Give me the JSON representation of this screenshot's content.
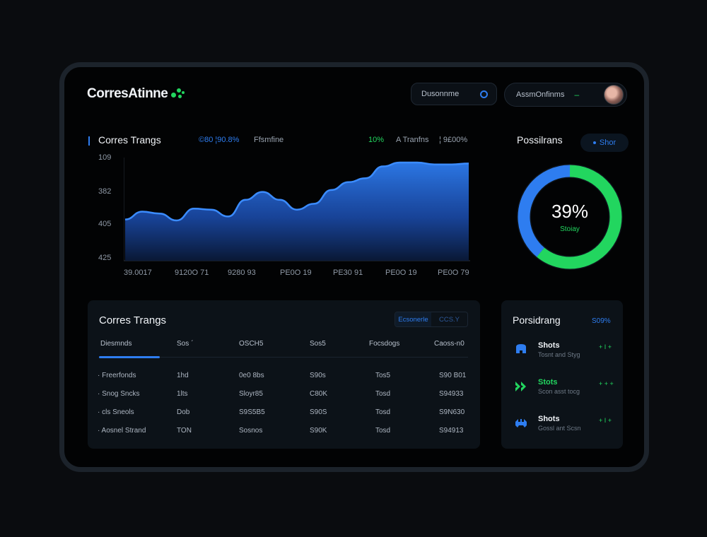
{
  "app": {
    "brand": "CorresAtinne",
    "search_label": "Dusonnme",
    "account_label": "AssmOnfinms",
    "account_marker": "–"
  },
  "chart_header": {
    "title": "Corres Trangs",
    "stat_a": "©80 ¦90.8%",
    "stat_b": "Ffsmfine",
    "stat_c": "10%",
    "stat_d": "A Tranfns",
    "stat_e": "¦ 9£00%"
  },
  "colors": {
    "accent_blue": "#2e7df0",
    "accent_green": "#22d65f",
    "background": "#020304",
    "panel": "#0c1218"
  },
  "chart_data": {
    "type": "area",
    "title": "Corres Trangs",
    "ytick_labels": [
      "109",
      "382",
      "405",
      "425"
    ],
    "xtick_labels": [
      "39.0017",
      "9120O 71",
      "9280 93",
      "PE0O 19",
      "PE30 91",
      "PE0O 19",
      "PE0O 79"
    ],
    "x": [
      0,
      1,
      2,
      3,
      4,
      5,
      6,
      7,
      8,
      9,
      10,
      11,
      12,
      13,
      14,
      15,
      16,
      17,
      18,
      19,
      20
    ],
    "values": [
      42,
      50,
      48,
      41,
      53,
      52,
      45,
      62,
      70,
      62,
      52,
      58,
      72,
      80,
      84,
      96,
      100,
      100,
      98,
      98,
      99
    ],
    "ylim": [
      0,
      105
    ],
    "grid": false,
    "fill_color": "#2e7df0"
  },
  "positions_donut": {
    "title": "Possilrans",
    "show_button": "Shor",
    "value": "39%",
    "sublabel": "Stoiay",
    "percent_green": 61,
    "percent_blue": 39
  },
  "table": {
    "title": "Corres Trangs",
    "segment_a": "Ecsonerle",
    "segment_b": "CCS.Y",
    "columns": [
      "Diesmnds",
      "Sos ˊ",
      "OSCH5",
      "Sos5",
      "Focsdogs",
      "Caoss-n0"
    ],
    "rows": [
      [
        "· Freerfonds",
        "1hd",
        "0e0 8bs",
        "S90s",
        "Tos5",
        "S90 B01"
      ],
      [
        "· Snog Sncks",
        "1lts",
        "Sloyr85",
        "C80K",
        "Tosd",
        "S94933"
      ],
      [
        "· cls Sneols",
        "Dob",
        "S9S5B5",
        "S90S",
        "Tosd",
        "S9N630"
      ],
      [
        "· Aosnel Strand",
        "TON",
        "Sosnos",
        "S90K",
        "Tosd",
        "S94913"
      ]
    ]
  },
  "positions_list": {
    "title": "Porsidrang",
    "link": "S09%",
    "items": [
      {
        "name": "Shots",
        "sub": "Tosnt and Styg",
        "value": "+ I +",
        "icon": "blue-shield"
      },
      {
        "name": "Stots",
        "sub": "Scon asst tocg",
        "value": "+ + +",
        "icon": "green-arrows"
      },
      {
        "name": "Shots",
        "sub": "Gossl ant Scsn",
        "value": "+ I +",
        "icon": "blue-crab"
      }
    ]
  }
}
